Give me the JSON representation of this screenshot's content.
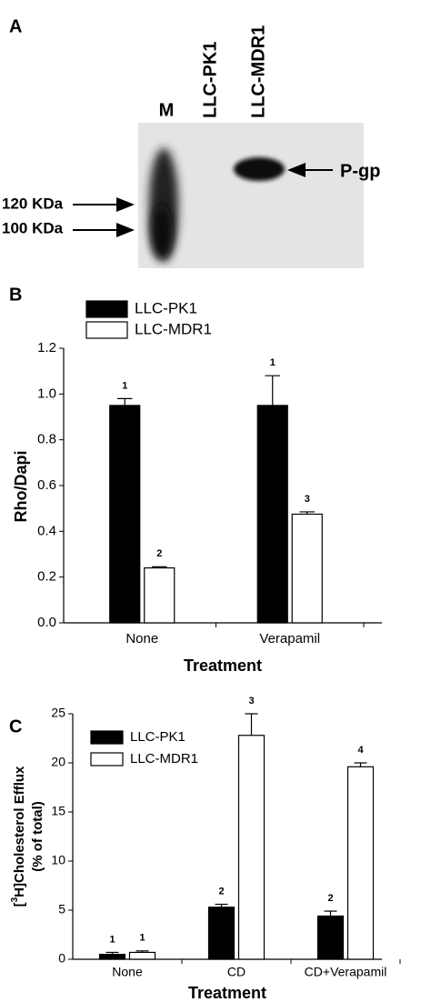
{
  "blot": {
    "panel_label": "A",
    "lanes": [
      "M",
      "LLC-PK1",
      "LLC-MDR1"
    ],
    "markers": [
      "120 KDa",
      "100 KDa"
    ],
    "band_label": "P-gp"
  },
  "chart_data": [
    {
      "type": "bar",
      "panel_label": "B",
      "xlabel": "Treatment",
      "ylabel": [
        "Rho/Dapi"
      ],
      "categories": [
        "None",
        "Verapamil"
      ],
      "series": [
        {
          "name": "LLC-PK1",
          "color": "#000000",
          "values": [
            0.95,
            0.95
          ],
          "errors": [
            0.03,
            0.13
          ],
          "group_labels": [
            "1",
            "1"
          ]
        },
        {
          "name": "LLC-MDR1",
          "color": "#ffffff",
          "values": [
            0.24,
            0.475
          ],
          "errors": [
            0.005,
            0.01
          ],
          "group_labels": [
            "2",
            "3"
          ]
        }
      ],
      "ylim": [
        0,
        1.2
      ],
      "yticks": [
        {
          "value": 0,
          "label": "0.0"
        },
        0.2,
        0.4,
        0.6,
        0.8,
        {
          "value": 1,
          "label": "1.0"
        },
        1.2
      ],
      "grid": false
    },
    {
      "type": "bar",
      "panel_label": "C",
      "xlabel": "Treatment",
      "ylabel": [
        "[",
        "3",
        "H]Cholesterol Efflux",
        "(% of total)"
      ],
      "categories": [
        "None",
        "CD",
        "CD+Verapamil"
      ],
      "series": [
        {
          "name": "LLC-PK1",
          "color": "#000000",
          "values": [
            0.5,
            5.3,
            4.4
          ],
          "errors": [
            0.2,
            0.3,
            0.5
          ],
          "group_labels": [
            "1",
            "2",
            "2"
          ]
        },
        {
          "name": "LLC-MDR1",
          "color": "#ffffff",
          "values": [
            0.7,
            22.8,
            19.6
          ],
          "errors": [
            0.15,
            2.2,
            0.4
          ],
          "group_labels": [
            "1",
            "3",
            "4"
          ]
        }
      ],
      "ylim": [
        0,
        25
      ],
      "yticks": [
        0,
        5,
        10,
        15,
        20,
        25
      ],
      "grid": false
    }
  ]
}
